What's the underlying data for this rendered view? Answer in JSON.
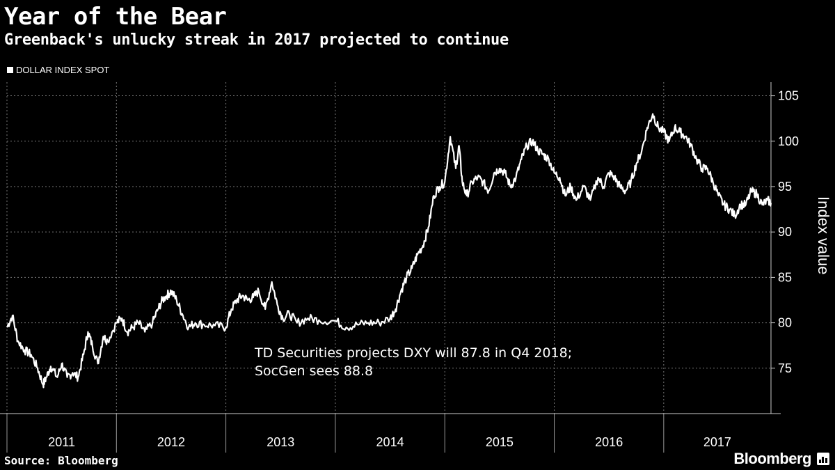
{
  "header": {
    "title": "Year of the Bear",
    "subtitle": "Greenback's unlucky streak in 2017 projected to continue"
  },
  "footer": {
    "source": "Source: Bloomberg",
    "brand": "Bloomberg"
  },
  "chart_data": {
    "type": "line",
    "title": "Year of the Bear",
    "subtitle": "Greenback's unlucky streak in 2017 projected to continue",
    "ylabel": "Index value",
    "xlabel": "",
    "ylim": [
      70,
      106.5
    ],
    "yticks": [
      75,
      80,
      85,
      90,
      95,
      100,
      105
    ],
    "xlim": [
      2011.0,
      2017.98
    ],
    "xtick_labels": [
      "2011",
      "2012",
      "2013",
      "2014",
      "2015",
      "2016",
      "2017"
    ],
    "grid": true,
    "legend": "top-left",
    "line_color": "#ffffff",
    "background": "#000000",
    "annotation": [
      "TD Securities projects DXY will 87.8 in Q4 2018;",
      "SocGen sees 88.8"
    ],
    "series": [
      {
        "name": "DOLLAR INDEX SPOT",
        "x": [
          2011.0,
          2011.05,
          2011.1,
          2011.16,
          2011.22,
          2011.28,
          2011.33,
          2011.36,
          2011.4,
          2011.46,
          2011.5,
          2011.55,
          2011.6,
          2011.65,
          2011.7,
          2011.74,
          2011.78,
          2011.83,
          2011.88,
          2011.92,
          2012.0,
          2012.05,
          2012.1,
          2012.15,
          2012.2,
          2012.26,
          2012.33,
          2012.38,
          2012.42,
          2012.46,
          2012.5,
          2012.55,
          2012.6,
          2012.66,
          2012.72,
          2012.8,
          2012.9,
          2013.0,
          2013.05,
          2013.1,
          2013.15,
          2013.2,
          2013.25,
          2013.3,
          2013.36,
          2013.42,
          2013.47,
          2013.52,
          2013.58,
          2013.65,
          2013.75,
          2013.85,
          2014.0,
          2014.1,
          2014.2,
          2014.3,
          2014.4,
          2014.5,
          2014.55,
          2014.6,
          2014.65,
          2014.7,
          2014.75,
          2014.8,
          2014.85,
          2014.9,
          2014.95,
          2015.0,
          2015.05,
          2015.1,
          2015.13,
          2015.16,
          2015.2,
          2015.25,
          2015.3,
          2015.35,
          2015.4,
          2015.45,
          2015.5,
          2015.55,
          2015.6,
          2015.65,
          2015.7,
          2015.75,
          2015.8,
          2015.85,
          2015.9,
          2015.95,
          2016.0,
          2016.05,
          2016.1,
          2016.15,
          2016.2,
          2016.27,
          2016.33,
          2016.4,
          2016.45,
          2016.5,
          2016.55,
          2016.6,
          2016.65,
          2016.7,
          2016.75,
          2016.8,
          2016.85,
          2016.9,
          2016.95,
          2017.0,
          2017.05,
          2017.1,
          2017.15,
          2017.2,
          2017.25,
          2017.3,
          2017.35,
          2017.4,
          2017.45,
          2017.5,
          2017.55,
          2017.6,
          2017.65,
          2017.7,
          2017.75,
          2017.8,
          2017.85,
          2017.9,
          2017.95,
          2017.98
        ],
        "values": [
          79.5,
          80.8,
          78.0,
          77.0,
          76.5,
          75.0,
          73.2,
          74.0,
          75.2,
          74.0,
          75.5,
          74.0,
          74.5,
          74.0,
          76.5,
          79.0,
          77.5,
          75.5,
          78.5,
          78.0,
          80.0,
          80.5,
          79.0,
          79.5,
          80.0,
          79.0,
          80.0,
          81.5,
          82.5,
          83.0,
          83.5,
          82.5,
          81.0,
          79.5,
          80.0,
          79.8,
          79.7,
          79.5,
          81.5,
          82.5,
          83.0,
          82.5,
          82.8,
          83.5,
          81.5,
          84.5,
          82.0,
          80.5,
          81.0,
          80.0,
          80.5,
          80.3,
          80.2,
          79.5,
          79.8,
          80.0,
          80.0,
          80.5,
          81.5,
          83.5,
          85.0,
          86.0,
          87.5,
          88.5,
          90.5,
          94.0,
          95.0,
          95.5,
          100.5,
          97.0,
          99.5,
          95.5,
          94.0,
          95.5,
          96.0,
          95.5,
          94.5,
          96.5,
          97.0,
          96.5,
          95.0,
          96.0,
          98.0,
          99.5,
          100.0,
          99.0,
          98.5,
          98.0,
          96.5,
          96.0,
          94.0,
          95.0,
          93.5,
          95.0,
          93.5,
          96.0,
          95.0,
          96.5,
          96.0,
          95.0,
          94.5,
          95.5,
          97.5,
          99.0,
          101.5,
          103.0,
          101.5,
          101.0,
          100.0,
          101.5,
          101.0,
          100.5,
          99.5,
          98.0,
          97.0,
          97.0,
          95.5,
          94.0,
          93.0,
          92.5,
          91.8,
          93.0,
          93.0,
          94.5,
          94.2,
          93.0,
          93.5,
          93.2
        ]
      }
    ]
  }
}
